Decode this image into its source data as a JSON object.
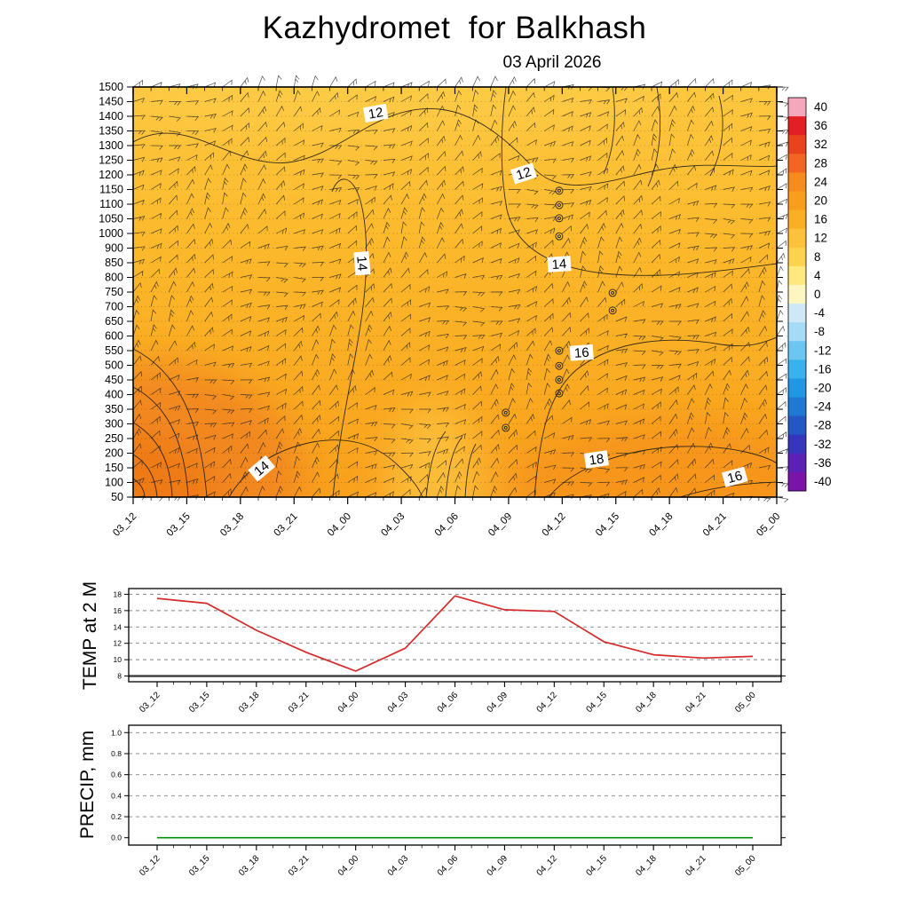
{
  "header": {
    "title": "Kazhydromet  for Balkhash",
    "subtitle": "03 April 2026"
  },
  "temp_panel": {
    "axis_title": "TEMP at 2 M"
  },
  "precip_panel": {
    "axis_title": "PRECIP, mm"
  },
  "chart_data": [
    {
      "type": "heatmap",
      "title": "Kazhydromet  for Balkhash",
      "subtitle": "03 April 2026",
      "x_axis": {
        "ticks": [
          "03_12",
          "03_15",
          "03_18",
          "03_21",
          "04_00",
          "04_03",
          "04_06",
          "04_09",
          "04_12",
          "04_15",
          "04_18",
          "04_21",
          "05_00"
        ],
        "minor_per_major": 3
      },
      "y_axis": {
        "levels": [
          "1500",
          "1450",
          "1400",
          "1350",
          "1300",
          "1250",
          "1200",
          "1150",
          "1100",
          "1050",
          "1000",
          "900",
          "850",
          "800",
          "750",
          "700",
          "650",
          "600",
          "550",
          "500",
          "450",
          "400",
          "350",
          "300",
          "250",
          "200",
          "150",
          "100",
          "50"
        ]
      },
      "contour_labels": [
        {
          "value": "12",
          "x": 37.7,
          "y": 6.5,
          "rot": -10
        },
        {
          "value": "12",
          "x": 60.7,
          "y": 21.2,
          "rot": -18
        },
        {
          "value": "14",
          "x": 35.5,
          "y": 43.0,
          "rot": 85
        },
        {
          "value": "14",
          "x": 66.2,
          "y": 43.3,
          "rot": -4
        },
        {
          "value": "16",
          "x": 69.7,
          "y": 64.9,
          "rot": -4
        },
        {
          "value": "18",
          "x": 72.0,
          "y": 90.9,
          "rot": -8
        },
        {
          "value": "14",
          "x": 20.0,
          "y": 93.1,
          "rot": -40
        },
        {
          "value": "16",
          "x": 93.5,
          "y": 95.2,
          "rot": -15
        }
      ],
      "calm_markers": [
        {
          "x": 66.2,
          "y": 25.3
        },
        {
          "x": 66.2,
          "y": 28.8
        },
        {
          "x": 66.2,
          "y": 32.0
        },
        {
          "x": 66.2,
          "y": 36.4
        },
        {
          "x": 74.5,
          "y": 50.2
        },
        {
          "x": 74.5,
          "y": 54.5
        },
        {
          "x": 66.2,
          "y": 64.3
        },
        {
          "x": 66.2,
          "y": 68.0
        },
        {
          "x": 66.2,
          "y": 71.4
        },
        {
          "x": 66.2,
          "y": 74.7
        },
        {
          "x": 57.9,
          "y": 79.4
        },
        {
          "x": 57.9,
          "y": 83.1
        }
      ],
      "field_colors": {
        "top": "#fdc840",
        "upper_mid": "#fcba2d",
        "lower_mid": "#faac22",
        "bottom": "#f9a01d",
        "hot_spot": "#f0831d",
        "hot_core": "#ed7716",
        "warm_spot": "#f6921c",
        "light_tongue": "#fdd24f",
        "top_light": "#fdce49"
      },
      "colorbar": {
        "tick_labels": [
          "40",
          "36",
          "32",
          "28",
          "24",
          "20",
          "16",
          "12",
          "8",
          "4",
          "0",
          "-4",
          "-8",
          "-12",
          "-16",
          "-20",
          "-24",
          "-28",
          "-32",
          "-36",
          "-40"
        ],
        "colors": [
          "#f5a7bc",
          "#e31e24",
          "#e8431c",
          "#f26522",
          "#f68b1e",
          "#f99d1c",
          "#fbaf23",
          "#fcc23b",
          "#fdd24f",
          "#fee97e",
          "#fdf6c3",
          "#cfe8f5",
          "#a6dbf7",
          "#6cc6f2",
          "#38b1ec",
          "#2196e3",
          "#1f78d1",
          "#2456c4",
          "#3636bd",
          "#5b21b5",
          "#7a14a8"
        ]
      }
    },
    {
      "type": "line",
      "title": "TEMP at 2 M",
      "ylabel": "TEMP at 2 M",
      "categories": [
        "03_12",
        "03_15",
        "03_18",
        "03_21",
        "04_00",
        "04_03",
        "04_06",
        "04_09",
        "04_12",
        "04_15",
        "04_18",
        "04_21",
        "05_00"
      ],
      "series": [
        {
          "name": "TEMP at 2 M",
          "color": "#d42a2a",
          "values": [
            17.5,
            16.9,
            13.6,
            10.9,
            8.6,
            11.4,
            17.8,
            16.1,
            15.9,
            12.2,
            10.6,
            10.2,
            10.4
          ]
        }
      ],
      "ylim": [
        8,
        18
      ],
      "yticks": [
        8,
        10,
        12,
        14,
        16,
        18
      ],
      "grid": "dashed-horizontal",
      "legend": "none"
    },
    {
      "type": "line",
      "title": "PRECIP, mm",
      "ylabel": "PRECIP, mm",
      "categories": [
        "03_12",
        "03_15",
        "03_18",
        "03_21",
        "04_00",
        "04_03",
        "04_06",
        "04_09",
        "04_12",
        "04_15",
        "04_18",
        "04_21",
        "05_00"
      ],
      "series": [
        {
          "name": "PRECIP, mm",
          "color": "#008f00",
          "values": [
            0,
            0,
            0,
            0,
            0,
            0,
            0,
            0,
            0,
            0,
            0,
            0,
            0
          ]
        }
      ],
      "ylim": [
        0,
        1
      ],
      "yticks": [
        0,
        0.2,
        0.4,
        0.6,
        0.8,
        1
      ],
      "grid": "dashed-horizontal",
      "legend": "none"
    }
  ]
}
